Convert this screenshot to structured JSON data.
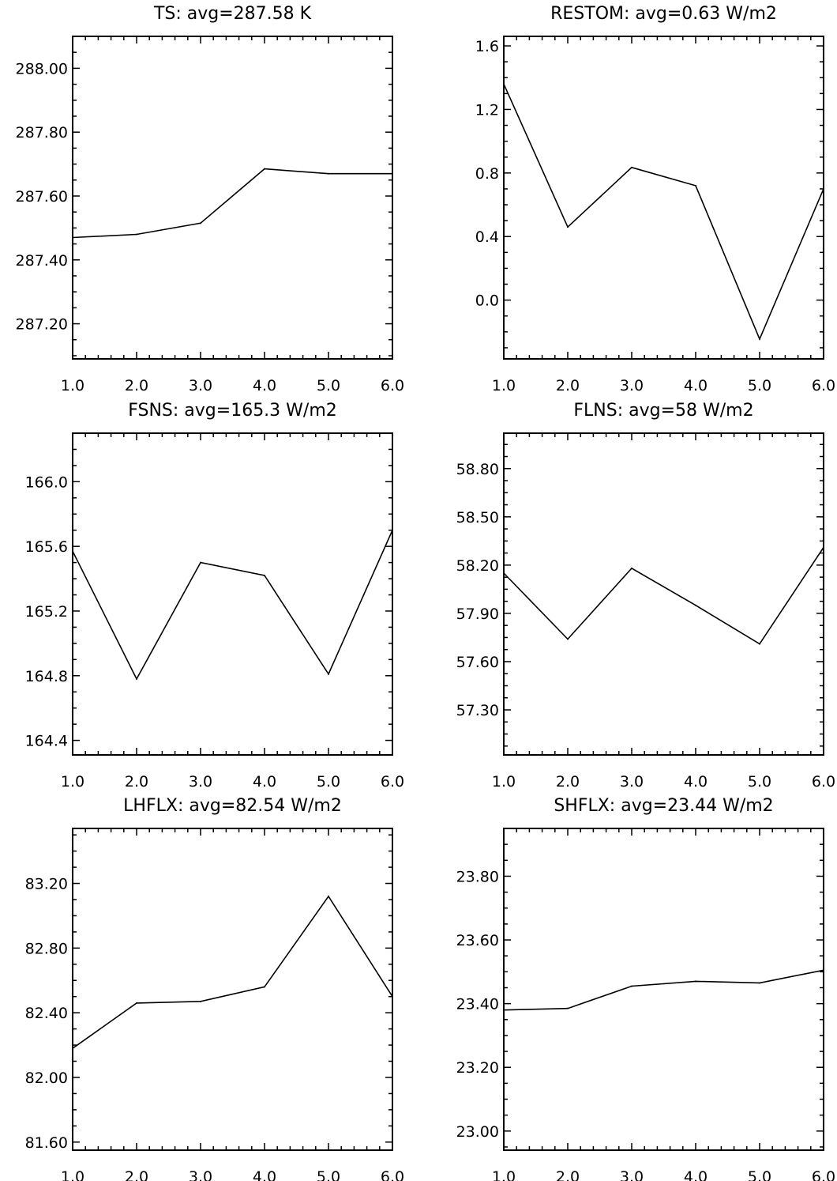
{
  "colors": {
    "background": "#ffffff",
    "line": "#000000",
    "axis": "#000000"
  },
  "chart_data": [
    {
      "type": "line",
      "title": "TS: avg=287.58 K",
      "x": [
        1,
        2,
        3,
        4,
        5,
        6
      ],
      "values": [
        287.47,
        287.48,
        287.515,
        287.685,
        287.67,
        287.67
      ],
      "xlim": [
        1,
        6
      ],
      "ylim": [
        287.09,
        288.1
      ],
      "xticks": [
        1,
        2,
        3,
        4,
        5,
        6
      ],
      "xtick_labels": [
        "1.0",
        "2.0",
        "3.0",
        "4.0",
        "5.0",
        "6.0"
      ],
      "yticks": [
        287.2,
        287.4,
        287.6,
        287.8,
        288.0
      ],
      "ytick_labels": [
        "287.20",
        "287.40",
        "287.60",
        "287.80",
        "288.00"
      ],
      "xlabel": "",
      "ylabel": ""
    },
    {
      "type": "line",
      "title": "RESTOM: avg=0.63 W/m2",
      "x": [
        1,
        2,
        3,
        4,
        5,
        6
      ],
      "values": [
        1.36,
        0.46,
        0.835,
        0.72,
        -0.245,
        0.7
      ],
      "xlim": [
        1,
        6
      ],
      "ylim": [
        -0.37,
        1.66
      ],
      "xticks": [
        1,
        2,
        3,
        4,
        5,
        6
      ],
      "xtick_labels": [
        "1.0",
        "2.0",
        "3.0",
        "4.0",
        "5.0",
        "6.0"
      ],
      "yticks": [
        0.0,
        0.4,
        0.8,
        1.2,
        1.6
      ],
      "ytick_labels": [
        "0.0",
        "0.4",
        "0.8",
        "1.2",
        "1.6"
      ],
      "xlabel": "",
      "ylabel": ""
    },
    {
      "type": "line",
      "title": "FSNS: avg=165.3 W/m2",
      "x": [
        1,
        2,
        3,
        4,
        5,
        6
      ],
      "values": [
        165.57,
        164.78,
        165.5,
        165.42,
        164.81,
        165.7
      ],
      "xlim": [
        1,
        6
      ],
      "ylim": [
        164.31,
        166.3
      ],
      "xticks": [
        1,
        2,
        3,
        4,
        5,
        6
      ],
      "xtick_labels": [
        "1.0",
        "2.0",
        "3.0",
        "4.0",
        "5.0",
        "6.0"
      ],
      "yticks": [
        164.4,
        164.8,
        165.2,
        165.6,
        166.0
      ],
      "ytick_labels": [
        "164.4",
        "164.8",
        "165.2",
        "165.6",
        "166.0"
      ],
      "xlabel": "",
      "ylabel": ""
    },
    {
      "type": "line",
      "title": "FLNS: avg=58 W/m2",
      "x": [
        1,
        2,
        3,
        4,
        5,
        6
      ],
      "values": [
        58.15,
        57.74,
        58.18,
        57.95,
        57.71,
        58.31
      ],
      "xlim": [
        1,
        6
      ],
      "ylim": [
        57.02,
        59.02
      ],
      "xticks": [
        1,
        2,
        3,
        4,
        5,
        6
      ],
      "xtick_labels": [
        "1.0",
        "2.0",
        "3.0",
        "4.0",
        "5.0",
        "6.0"
      ],
      "yticks": [
        57.3,
        57.6,
        57.9,
        58.2,
        58.5,
        58.8
      ],
      "ytick_labels": [
        "57.30",
        "57.60",
        "57.90",
        "58.20",
        "58.50",
        "58.80"
      ],
      "xlabel": "",
      "ylabel": ""
    },
    {
      "type": "line",
      "title": "LHFLX: avg=82.54 W/m2",
      "x": [
        1,
        2,
        3,
        4,
        5,
        6
      ],
      "values": [
        82.18,
        82.46,
        82.47,
        82.56,
        83.12,
        82.5
      ],
      "xlim": [
        1,
        6
      ],
      "ylim": [
        81.55,
        83.54
      ],
      "xticks": [
        1,
        2,
        3,
        4,
        5,
        6
      ],
      "xtick_labels": [
        "1.0",
        "2.0",
        "3.0",
        "4.0",
        "5.0",
        "6.0"
      ],
      "yticks": [
        81.6,
        82.0,
        82.4,
        82.8,
        83.2
      ],
      "ytick_labels": [
        "81.60",
        "82.00",
        "82.40",
        "82.80",
        "83.20"
      ],
      "xlabel": "",
      "ylabel": ""
    },
    {
      "type": "line",
      "title": "SHFLX: avg=23.44 W/m2",
      "x": [
        1,
        2,
        3,
        4,
        5,
        6
      ],
      "values": [
        23.38,
        23.385,
        23.455,
        23.47,
        23.465,
        23.505
      ],
      "xlim": [
        1,
        6
      ],
      "ylim": [
        22.94,
        23.95
      ],
      "xticks": [
        1,
        2,
        3,
        4,
        5,
        6
      ],
      "xtick_labels": [
        "1.0",
        "2.0",
        "3.0",
        "4.0",
        "5.0",
        "6.0"
      ],
      "yticks": [
        23.0,
        23.2,
        23.4,
        23.6,
        23.8
      ],
      "ytick_labels": [
        "23.00",
        "23.20",
        "23.40",
        "23.60",
        "23.80"
      ],
      "xlabel": "",
      "ylabel": ""
    }
  ]
}
